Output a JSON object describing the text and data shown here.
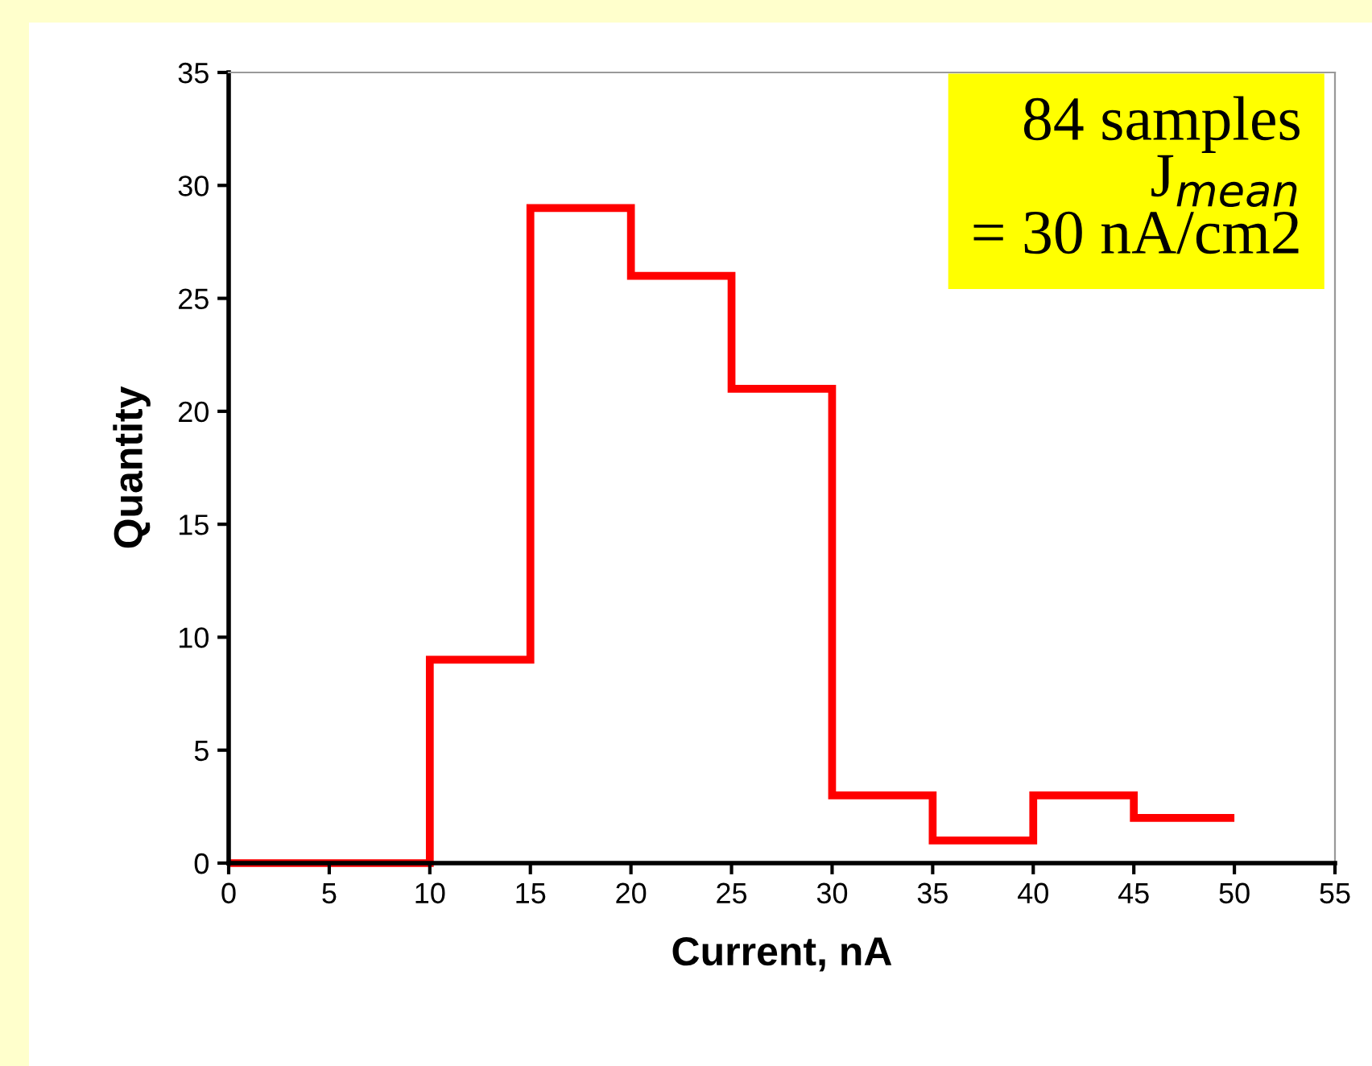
{
  "chart_data": {
    "type": "histogram",
    "xlabel": "Current, nA",
    "ylabel": "Quantity",
    "bins": [
      0,
      5,
      10,
      15,
      20,
      25,
      30,
      35,
      40,
      45,
      50
    ],
    "values": [
      0,
      0,
      9,
      29,
      26,
      21,
      3,
      1,
      3,
      2
    ],
    "color": "#ff0000",
    "xlim": [
      0,
      55
    ],
    "ylim": [
      0,
      35
    ],
    "xticks": [
      0,
      5,
      10,
      15,
      20,
      25,
      30,
      35,
      40,
      45,
      50,
      55
    ],
    "yticks": [
      0,
      5,
      10,
      15,
      20,
      25,
      30,
      35
    ],
    "annotations": [
      "84 samples\nJ$_{mean}$\n= 30 nA/cm2"
    ]
  }
}
